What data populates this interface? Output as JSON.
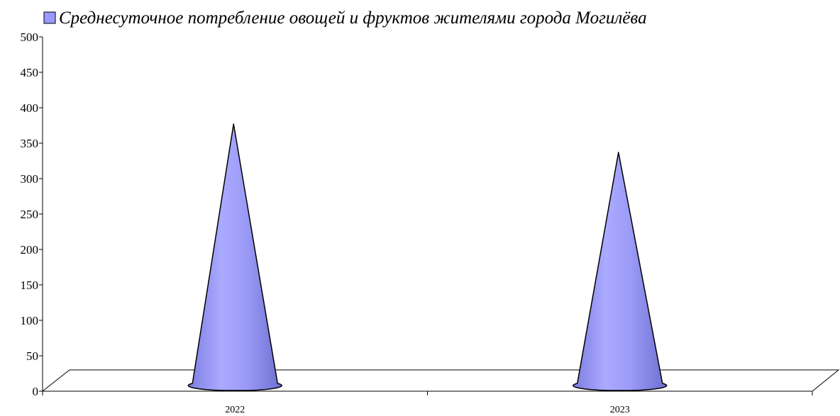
{
  "chart_data": {
    "type": "bar",
    "style": "3d-cone",
    "categories": [
      "2022",
      "2023"
    ],
    "series": [
      {
        "name": "Среднесуточное потребление овощей и фруктов жителями города Могилёва",
        "values": [
          375,
          335
        ],
        "color": "#9999ff"
      }
    ],
    "ylim": [
      0,
      500
    ],
    "yticks": [
      0,
      50,
      100,
      150,
      200,
      250,
      300,
      350,
      400,
      450,
      500
    ],
    "legend_position": "top",
    "grid": false
  }
}
